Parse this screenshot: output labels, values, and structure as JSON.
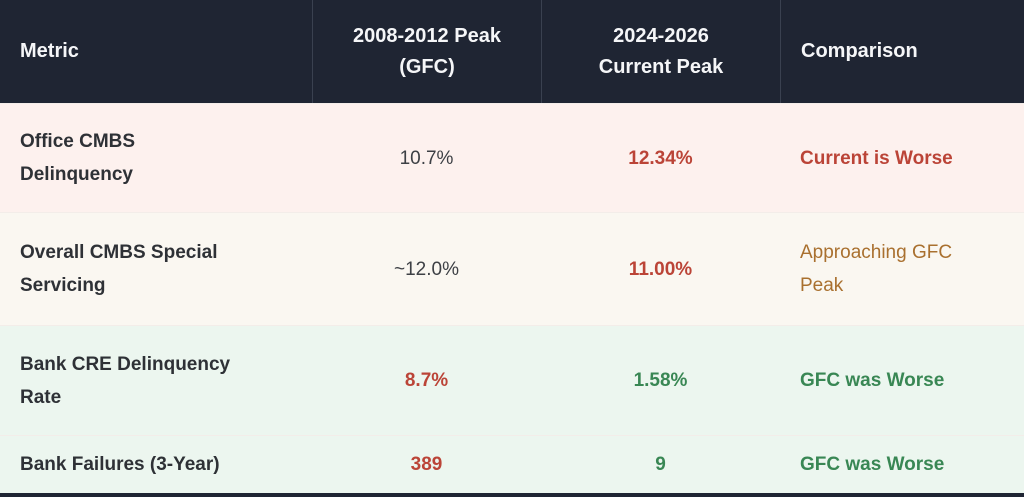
{
  "colors": {
    "header_bg": "#1f2533",
    "row_negative_bg": "#fdf1ee",
    "row_warning_bg": "#faf7f1",
    "row_positive_bg": "#ecf6ef",
    "negative_text": "#bb4437",
    "positive_text": "#398754",
    "warning_text": "#a9702f",
    "header_text": "#f5f6f8"
  },
  "table": {
    "columns": [
      {
        "label": "Metric"
      },
      {
        "label": "2008-2012 Peak\n(GFC)"
      },
      {
        "label": "2024-2026\nCurrent Peak"
      },
      {
        "label": "Comparison"
      }
    ],
    "rows": [
      {
        "metric": "Office CMBS\nDelinquency",
        "gfc_peak": "10.7%",
        "current_peak": "12.34%",
        "comparison": "Current is Worse"
      },
      {
        "metric": "Overall CMBS Special\nServicing",
        "gfc_peak": "~12.0%",
        "current_peak": "11.00%",
        "comparison": "Approaching GFC\nPeak"
      },
      {
        "metric": "Bank CRE Delinquency\nRate",
        "gfc_peak": "8.7%",
        "current_peak": "1.58%",
        "comparison": "GFC was Worse"
      },
      {
        "metric": "Bank Failures (3-Year)",
        "gfc_peak": "389",
        "current_peak": "9",
        "comparison": "GFC was Worse"
      }
    ]
  }
}
